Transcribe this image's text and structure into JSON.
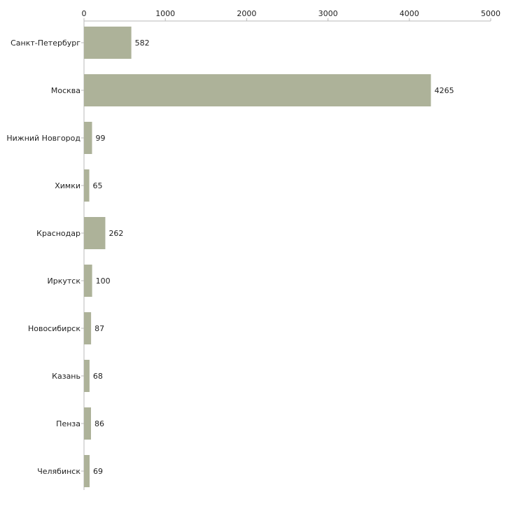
{
  "chart_data": {
    "type": "bar",
    "orientation": "horizontal",
    "categories": [
      "Санкт-Петербург",
      "Москва",
      "Нижний Новгород",
      "Химки",
      "Краснодар",
      "Иркутск",
      "Новосибирск",
      "Казань",
      "Пенза",
      "Челябинск"
    ],
    "values": [
      582,
      4265,
      99,
      65,
      262,
      100,
      87,
      68,
      86,
      69
    ],
    "data_labels": [
      "582",
      "4265",
      "99",
      "65",
      "262",
      "100",
      "87",
      "68",
      "86",
      "69"
    ],
    "xlim": [
      0,
      5000
    ],
    "xticks": [
      0,
      1000,
      2000,
      3000,
      4000,
      5000
    ],
    "xtick_labels": [
      "0",
      "1000",
      "2000",
      "3000",
      "4000",
      "5000"
    ],
    "xaxis_position": "top",
    "title": "",
    "xlabel": "",
    "ylabel": "",
    "grid": false,
    "bar_color": "#adb299"
  }
}
